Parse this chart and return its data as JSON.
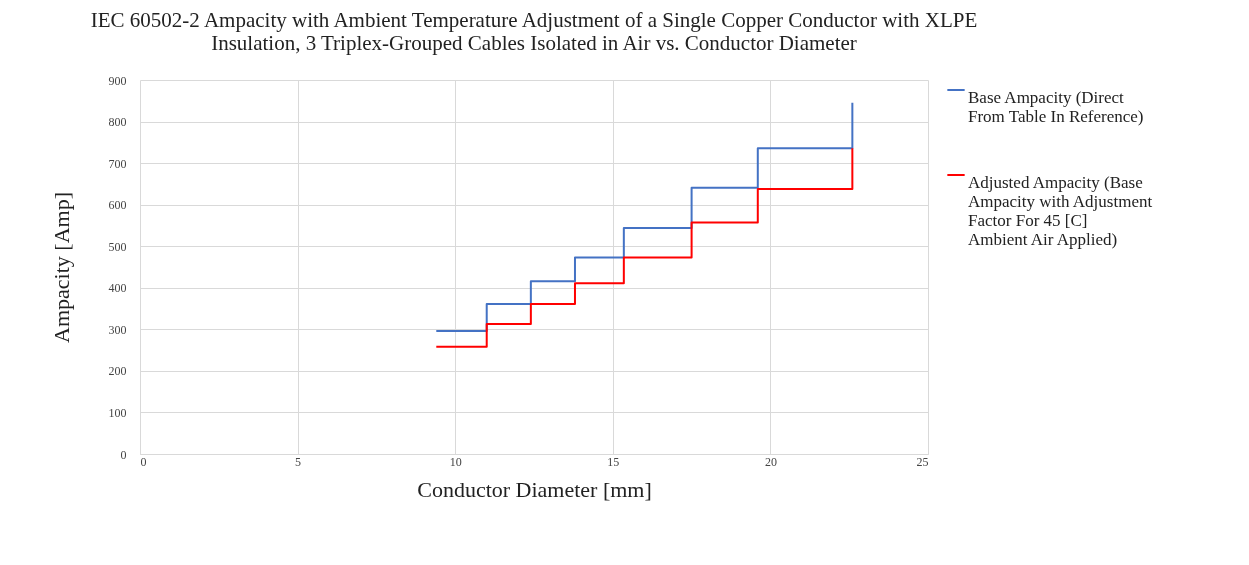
{
  "chart_data": {
    "type": "step",
    "title": "IEC 60502-2 Ampacity with Ambient Temperature Adjustment of a Single Copper Conductor with XLPE Insulation, 3 Triplex-Grouped Cables Isolated in Air vs. Conductor Diameter",
    "xlabel": "Conductor Diameter [mm]",
    "ylabel": "Ampacity [Amp]",
    "x": [
      9.4,
      11.0,
      12.4,
      13.8,
      15.35,
      17.5,
      19.6,
      22.6
    ],
    "series": [
      {
        "name": "Base Ampacity (Direct From Table In Reference)",
        "color": "#4472c4",
        "values": [
          296,
          361,
          416,
          473,
          544,
          641,
          736,
          845
        ]
      },
      {
        "name": "Adjusted Ampacity (Base Ampacity with Adjustment Factor For 45 [C] Ambient Air Applied)",
        "color": "#ff0000",
        "values": [
          258,
          313,
          361,
          411,
          473,
          557,
          638,
          736
        ]
      }
    ],
    "xlim": [
      0,
      25
    ],
    "xticks": [
      0,
      5,
      10,
      15,
      20,
      25
    ],
    "ylim": [
      0,
      900
    ],
    "yticks": [
      0,
      100,
      200,
      300,
      400,
      500,
      600,
      700,
      800,
      900
    ],
    "grid": true,
    "legend": "right",
    "marker": "none"
  }
}
